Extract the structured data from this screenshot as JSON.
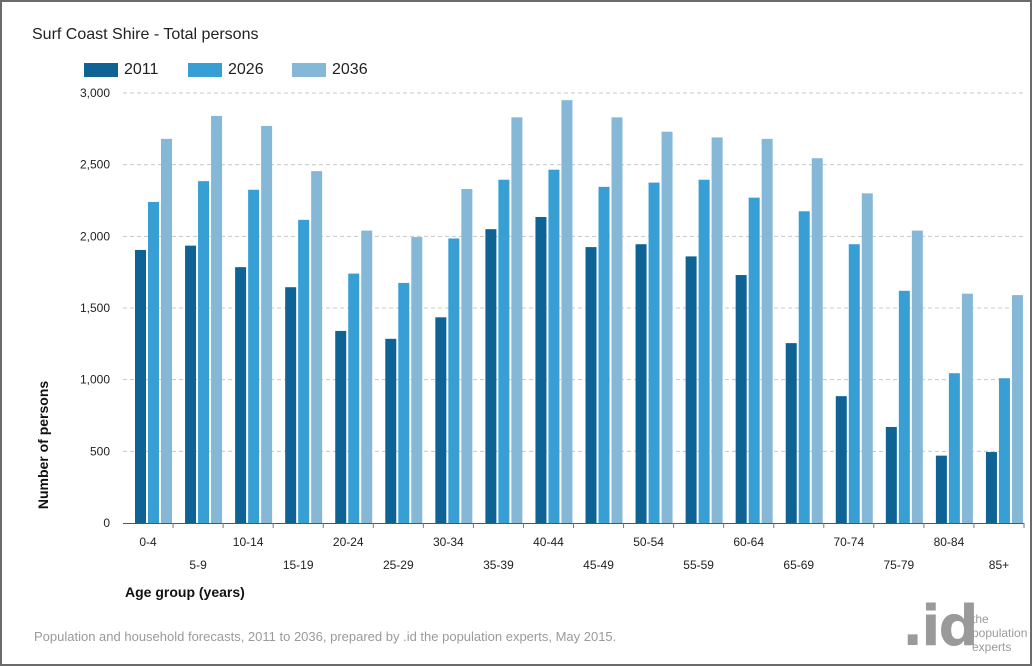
{
  "chart_data": {
    "type": "bar",
    "title": "Surf Coast Shire - Total persons",
    "xlabel": "Age group (years)",
    "ylabel": "Number of persons",
    "ylim": [
      0,
      3000
    ],
    "yticks": [
      0,
      500,
      1000,
      1500,
      2000,
      2500,
      3000
    ],
    "ytick_labels": [
      "0",
      "500",
      "1,000",
      "1,500",
      "2,000",
      "2,500",
      "3,000"
    ],
    "grid": true,
    "legend_position": "top-left",
    "categories": [
      "0-4",
      "5-9",
      "10-14",
      "15-19",
      "20-24",
      "25-29",
      "30-34",
      "35-39",
      "40-44",
      "45-49",
      "50-54",
      "55-59",
      "60-64",
      "65-69",
      "70-74",
      "75-79",
      "80-84",
      "85+"
    ],
    "series": [
      {
        "name": "2011",
        "color": "#0e6394",
        "values": [
          1905,
          1935,
          1785,
          1645,
          1340,
          1285,
          1435,
          2050,
          2135,
          1925,
          1945,
          1860,
          1730,
          1255,
          885,
          670,
          470,
          495
        ]
      },
      {
        "name": "2026",
        "color": "#389fd4",
        "values": [
          2240,
          2385,
          2325,
          2115,
          1740,
          1675,
          1985,
          2395,
          2465,
          2345,
          2375,
          2395,
          2270,
          2175,
          1945,
          1620,
          1045,
          1010
        ]
      },
      {
        "name": "2036",
        "color": "#85b8d6",
        "values": [
          2680,
          2840,
          2770,
          2455,
          2040,
          1995,
          2330,
          2830,
          2950,
          2830,
          2730,
          2690,
          2680,
          2545,
          2300,
          2040,
          1600,
          1590
        ]
      }
    ]
  },
  "footer": {
    "source": "Population and household forecasts, 2011 to 2036, prepared by .id the population experts, May 2015."
  },
  "logo": {
    "mark": ".id",
    "text": "the population experts"
  }
}
